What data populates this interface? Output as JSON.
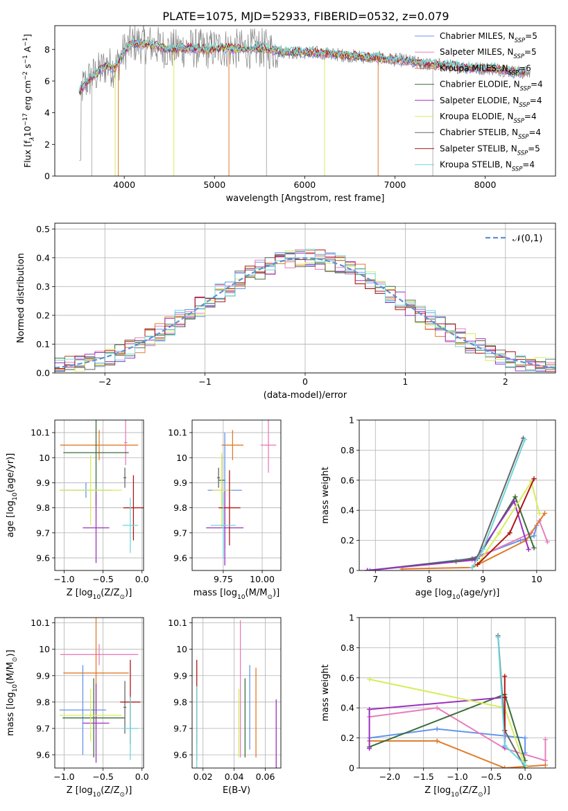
{
  "figure": {
    "title": "PLATE=1075, MJD=52933, FIBERID=0532, z=0.079",
    "colors": [
      "#6495ed",
      "#e87ebb",
      "#e07b28",
      "#3a6e3a",
      "#9b30c0",
      "#d8ec5a",
      "#666666",
      "#b01515",
      "#6dd6dc"
    ],
    "series": [
      {
        "label": "Chabrier MILES, N",
        "sub": "SSP",
        "tail": "=5"
      },
      {
        "label": "Salpeter MILES, N",
        "sub": "SSP",
        "tail": "=5"
      },
      {
        "label": "Kroupa MILES, N",
        "sub": "SSP",
        "tail": "=6"
      },
      {
        "label": "Chabrier ELODIE, N",
        "sub": "SSP",
        "tail": "=4"
      },
      {
        "label": "Salpeter ELODIE, N",
        "sub": "SSP",
        "tail": "=4"
      },
      {
        "label": "Kroupa ELODIE, N",
        "sub": "SSP",
        "tail": "=4"
      },
      {
        "label": "Chabrier STELIB, N",
        "sub": "SSP",
        "tail": "=4"
      },
      {
        "label": "Salpeter STELIB, N",
        "sub": "SSP",
        "tail": "=5"
      },
      {
        "label": "Kroupa STELIB, N",
        "sub": "SSP",
        "tail": "=4"
      }
    ]
  },
  "chart_data": [
    {
      "id": "spectrum",
      "type": "line",
      "xlabel": "wavelength [Angstrom, rest frame]",
      "ylabel": "Flux [f",
      "ylabel_lambda": "λ",
      "ylabel_tail": "10",
      "ylabel_sup1": "−17",
      "ylabel_mid": " erg cm",
      "ylabel_sup2": "−2",
      "ylabel_mid2": " s",
      "ylabel_sup3": "−1",
      "ylabel_mid3": " A",
      "ylabel_sup4": "−1",
      "ylabel_end": "]",
      "xlim": [
        3230,
        8780
      ],
      "ylim": [
        0,
        9.5
      ],
      "xticks": [
        4000,
        5000,
        6000,
        7000,
        8000
      ],
      "yticks": [
        0,
        2,
        4,
        6,
        8
      ],
      "grid": false,
      "legend": "right",
      "continuum": {
        "x": [
          3500,
          3600,
          3700,
          3800,
          3900,
          4000,
          4100,
          4300,
          4500,
          4700,
          4900,
          5100,
          5300,
          5500,
          5700,
          5900,
          6100,
          6300,
          6500,
          6700,
          6900,
          7100,
          7300,
          7500,
          7700,
          7900,
          8100,
          8300,
          8500
        ],
        "y": [
          5.3,
          6.1,
          6.5,
          7.0,
          6.8,
          7.9,
          8.4,
          8.3,
          8.0,
          8.1,
          8.0,
          8.1,
          8.0,
          8.1,
          7.9,
          7.8,
          7.8,
          7.7,
          7.6,
          7.5,
          7.4,
          7.3,
          7.1,
          7.0,
          6.9,
          6.8,
          6.8,
          6.6,
          6.5
        ]
      },
      "dips": [
        3640,
        3900,
        3934,
        4230,
        4550,
        5160,
        5577,
        6220,
        6814,
        7420
      ]
    },
    {
      "id": "residuals",
      "type": "histogram",
      "xlabel": "(data-model)/error",
      "ylabel": "Normed distribution",
      "xlim": [
        -2.5,
        2.5
      ],
      "ylim": [
        0,
        0.52
      ],
      "xticks": [
        -2,
        -1,
        0,
        1,
        2
      ],
      "xtick_labels": [
        "−2",
        "−1",
        "0",
        "1",
        "2"
      ],
      "yticks": [
        0.0,
        0.1,
        0.2,
        0.3,
        0.4,
        0.5
      ],
      "ytick_labels": [
        "0.0",
        "0.1",
        "0.2",
        "0.3",
        "0.4",
        "0.5"
      ],
      "grid": true,
      "legend": "upper right",
      "normal_label": "𝒩(0,1)",
      "bin_width": 0.1
    },
    {
      "id": "z-age",
      "type": "errorbar",
      "xlabel": "Z [log",
      "xlabel_sub": "10",
      "xlabel_tail": "(Z/Z",
      "xlabel_sub2": "⊙",
      "xlabel_end": ")]",
      "ylabel": "age  [log",
      "ylabel_sub": "10",
      "ylabel_tail": "(age/yr)]",
      "xlim": [
        -1.12,
        0.02
      ],
      "ylim": [
        9.55,
        10.15
      ],
      "xticks": [
        -1.0,
        -0.5,
        0.0
      ],
      "xtick_labels": [
        "−1.0",
        "−0.5",
        "0.0"
      ],
      "yticks": [
        9.6,
        9.7,
        9.8,
        9.9,
        10.0,
        10.1
      ],
      "grid": true,
      "points": [
        {
          "x": -0.72,
          "xerr": 0.33,
          "y": 9.87,
          "yerr": 0.03
        },
        {
          "x": -0.21,
          "xerr": 0.02,
          "y": 10.06,
          "yerr": 0.09
        },
        {
          "x": -0.55,
          "xerr": 0.5,
          "y": 10.05,
          "yerr": 0.06
        },
        {
          "x": -0.59,
          "xerr": 0.42,
          "y": 10.02,
          "yerr": 0.21
        },
        {
          "x": -0.59,
          "xerr": 0.17,
          "y": 9.72,
          "yerr": 0.14
        },
        {
          "x": -0.66,
          "xerr": 0.4,
          "y": 9.87,
          "yerr": 0.14
        },
        {
          "x": -0.22,
          "xerr": 0.02,
          "y": 9.92,
          "yerr": 0.04
        },
        {
          "x": -0.11,
          "xerr": 0.13,
          "y": 9.8,
          "yerr": 0.13
        },
        {
          "x": -0.15,
          "xerr": 0.1,
          "y": 9.73,
          "yerr": 0.11
        }
      ]
    },
    {
      "id": "mass-age",
      "type": "errorbar",
      "xlabel": "mass [log",
      "xlabel_sub": "10",
      "xlabel_tail": "(M/M",
      "xlabel_sub2": "⊙",
      "xlabel_end": ")]",
      "xlim": [
        9.55,
        10.12
      ],
      "ylim": [
        9.55,
        10.15
      ],
      "xticks": [
        9.75,
        10.0
      ],
      "xtick_labels": [
        "9.75",
        "10.00"
      ],
      "yticks": [
        9.6,
        9.7,
        9.8,
        9.9,
        10.0,
        10.1
      ],
      "grid": true,
      "points": [
        {
          "x": 9.76,
          "xerr": 0.11,
          "y": 9.87,
          "yerr": 0.23
        },
        {
          "x": 10.04,
          "xerr": 0.05,
          "y": 10.05,
          "yerr": 0.11
        },
        {
          "x": 9.81,
          "xerr": 0.07,
          "y": 10.05,
          "yerr": 0.06
        },
        {
          "x": 9.74,
          "xerr": 0.02,
          "y": 9.91,
          "yerr": 0.1
        },
        {
          "x": 9.76,
          "xerr": 0.12,
          "y": 9.72,
          "yerr": 0.15
        },
        {
          "x": 9.74,
          "xerr": 0.06,
          "y": 9.87,
          "yerr": 0.15
        },
        {
          "x": 9.72,
          "xerr": 0.01,
          "y": 9.92,
          "yerr": 0.04
        },
        {
          "x": 9.79,
          "xerr": 0.07,
          "y": 9.8,
          "yerr": 0.15
        },
        {
          "x": 9.75,
          "xerr": 0.08,
          "y": 9.73,
          "yerr": 0.13
        }
      ]
    },
    {
      "id": "age-weight",
      "type": "line",
      "xlabel": "age  [log",
      "xlabel_sub": "10",
      "xlabel_tail": "(age/yr)]",
      "ylabel": "mass weight",
      "xlim": [
        6.7,
        10.35
      ],
      "ylim": [
        0,
        1.0
      ],
      "xticks": [
        7,
        8,
        9,
        10
      ],
      "yticks": [
        0.0,
        0.2,
        0.4,
        0.6,
        0.8,
        1.0
      ],
      "grid": true,
      "series": [
        {
          "x": [
            6.9,
            8.8,
            9.7,
            9.95,
            10.0
          ],
          "y": [
            0.0,
            0.08,
            0.2,
            0.23,
            0.3
          ]
        },
        {
          "x": [
            8.8,
            9.9,
            10.05,
            10.2
          ],
          "y": [
            0.07,
            0.25,
            0.33,
            0.19
          ]
        },
        {
          "x": [
            7.5,
            8.8,
            9.8,
            10.15
          ],
          "y": [
            0.01,
            0.02,
            0.2,
            0.38
          ]
        },
        {
          "x": [
            6.85,
            8.9,
            9.6,
            9.95
          ],
          "y": [
            0.0,
            0.08,
            0.49,
            0.15
          ]
        },
        {
          "x": [
            6.85,
            8.85,
            9.58,
            9.85
          ],
          "y": [
            0.0,
            0.07,
            0.46,
            0.14
          ]
        },
        {
          "x": [
            8.9,
            9.3,
            9.9,
            10.05
          ],
          "y": [
            0.04,
            0.25,
            0.59,
            0.38
          ]
        },
        {
          "x": [
            8.5,
            8.9,
            9.75
          ],
          "y": [
            0.06,
            0.09,
            0.88
          ]
        },
        {
          "x": [
            8.9,
            9.5,
            9.95
          ],
          "y": [
            0.04,
            0.25,
            0.61
          ]
        },
        {
          "x": [
            8.8,
            9.0,
            9.78
          ],
          "y": [
            0.02,
            0.14,
            0.87
          ]
        }
      ]
    },
    {
      "id": "z-mass",
      "type": "errorbar",
      "xlabel": "Z [log",
      "xlabel_sub": "10",
      "xlabel_tail": "(Z/Z",
      "xlabel_sub2": "⊙",
      "xlabel_end": ")]",
      "ylabel": "mass [log",
      "ylabel_sub": "10",
      "ylabel_tail": "(M/M",
      "ylabel_sub2": "⊙",
      "ylabel_end": ")]",
      "xlim": [
        -1.12,
        0.02
      ],
      "ylim": [
        9.55,
        10.12
      ],
      "xticks": [
        -1.0,
        -0.5,
        0.0
      ],
      "xtick_labels": [
        "−1.0",
        "−0.5",
        "0.0"
      ],
      "yticks": [
        9.6,
        9.7,
        9.8,
        9.9,
        10.0,
        10.1
      ],
      "grid": true,
      "points": [
        {
          "x": -0.76,
          "xerr": 0.3,
          "y": 9.77,
          "yerr": 0.17
        },
        {
          "x": -0.55,
          "xerr": 0.5,
          "y": 9.98,
          "yerr": 0.04
        },
        {
          "x": -0.59,
          "xerr": 0.42,
          "y": 9.91,
          "yerr": 0.21
        },
        {
          "x": -0.62,
          "xerr": 0.4,
          "y": 9.74,
          "yerr": 0.15
        },
        {
          "x": -0.59,
          "xerr": 0.17,
          "y": 9.72,
          "yerr": 0.15
        },
        {
          "x": -0.66,
          "xerr": 0.4,
          "y": 9.75,
          "yerr": 0.1
        },
        {
          "x": -0.22,
          "xerr": 0.02,
          "y": 9.78,
          "yerr": 0.1
        },
        {
          "x": -0.15,
          "xerr": 0.13,
          "y": 9.8,
          "yerr": 0.16
        },
        {
          "x": -0.15,
          "xerr": 0.1,
          "y": 9.7,
          "yerr": 0.12
        }
      ]
    },
    {
      "id": "ebv-mass",
      "type": "errorbar",
      "xlabel": "E(B-V)",
      "xlim": [
        0.013,
        0.07
      ],
      "ylim": [
        9.55,
        10.12
      ],
      "xticks": [
        0.02,
        0.04,
        0.06
      ],
      "xtick_labels": [
        "0.02",
        "0.04",
        "0.06"
      ],
      "yticks": [
        9.6,
        9.7,
        9.8,
        9.9,
        10.0,
        10.1
      ],
      "grid": true,
      "points": [
        {
          "x": 0.05,
          "y": 9.78,
          "yerr": 0.16
        },
        {
          "x": 0.044,
          "y": 9.85,
          "yerr": 0.26
        },
        {
          "x": 0.054,
          "y": 9.76,
          "yerr": 0.17
        },
        {
          "x": 0.047,
          "y": 9.74,
          "yerr": 0.15
        },
        {
          "x": 0.067,
          "y": 9.68,
          "yerr": 0.13
        },
        {
          "x": 0.043,
          "y": 9.72,
          "yerr": 0.13
        },
        {
          "x": 0.016,
          "y": 9.72,
          "yerr": 0.14
        },
        {
          "x": 0.016,
          "y": 9.8,
          "yerr": 0.16
        },
        {
          "x": 0.016,
          "y": 9.7,
          "yerr": 0.16
        }
      ]
    },
    {
      "id": "z-weight",
      "type": "line",
      "xlabel": "Z [log",
      "xlabel_sub": "10",
      "xlabel_tail": "(Z/Z",
      "xlabel_sub2": "⊙",
      "xlabel_end": ")]",
      "ylabel": "mass weight",
      "xlim": [
        -2.45,
        0.45
      ],
      "ylim": [
        0,
        1.0
      ],
      "xticks": [
        -2.0,
        -1.5,
        -1.0,
        -0.5,
        0.0
      ],
      "xtick_labels": [
        "−2.0",
        "−1.5",
        "−1.0",
        "−0.5",
        "0.0"
      ],
      "yticks": [
        0.0,
        0.2,
        0.4,
        0.6,
        0.8,
        1.0
      ],
      "grid": true,
      "series": [
        {
          "x": [
            -2.3,
            -1.3,
            0.0,
            0.0
          ],
          "y": [
            0.2,
            0.26,
            0.2,
            0.1
          ]
        },
        {
          "x": [
            -2.3,
            -1.3,
            -0.3,
            0.3,
            0.3
          ],
          "y": [
            0.34,
            0.4,
            0.13,
            0.05,
            0.19
          ]
        },
        {
          "x": [
            -2.3,
            -1.3,
            -0.3,
            0.3
          ],
          "y": [
            0.18,
            0.18,
            0.0,
            0.02
          ]
        },
        {
          "x": [
            -2.3,
            -0.3,
            0.0
          ],
          "y": [
            0.14,
            0.49,
            0.05
          ]
        },
        {
          "x": [
            -2.3,
            -2.3,
            -0.3,
            -0.3
          ],
          "y": [
            0.13,
            0.39,
            0.47,
            0.14
          ]
        },
        {
          "x": [
            -2.3,
            -0.3,
            0.0
          ],
          "y": [
            0.59,
            0.4,
            0.01
          ]
        },
        {
          "x": [
            -0.4,
            -0.3,
            0.0
          ],
          "y": [
            0.88,
            0.25,
            0.0
          ]
        },
        {
          "x": [
            -0.3,
            -0.3,
            -0.3
          ],
          "y": [
            0.61,
            0.25,
            0.47
          ]
        },
        {
          "x": [
            -0.4,
            -0.3,
            0.0
          ],
          "y": [
            0.87,
            0.15,
            0.02
          ]
        }
      ]
    }
  ]
}
